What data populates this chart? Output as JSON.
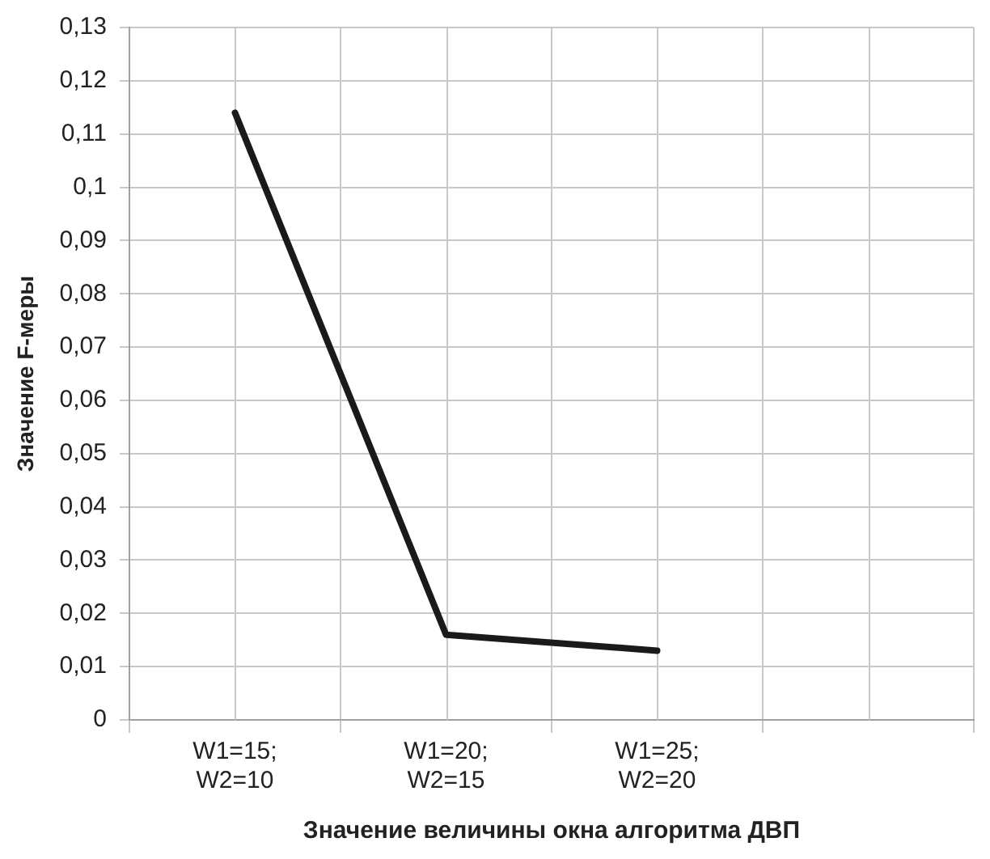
{
  "chart_data": {
    "type": "line",
    "xlabel": "Значение величины окна алгоритма ДВП",
    "ylabel": "Значение F-меры",
    "categories": [
      "W1=15; W2=10",
      "W1=20; W2=15",
      "W1=25; W2=20",
      null
    ],
    "series": [
      {
        "color": "#1a1a1a",
        "values": [
          0.114,
          0.016,
          0.013,
          null
        ]
      }
    ],
    "ylim": [
      0,
      0.13
    ],
    "yticks": [
      {
        "value": 0,
        "label": "0"
      },
      {
        "value": 0.01,
        "label": "0,01"
      },
      {
        "value": 0.02,
        "label": "0,02"
      },
      {
        "value": 0.03,
        "label": "0,03"
      },
      {
        "value": 0.04,
        "label": "0,04"
      },
      {
        "value": 0.05,
        "label": "0,05"
      },
      {
        "value": 0.06,
        "label": "0,06"
      },
      {
        "value": 0.07,
        "label": "0,07"
      },
      {
        "value": 0.08,
        "label": "0,08"
      },
      {
        "value": 0.09,
        "label": "0,09"
      },
      {
        "value": 0.1,
        "label": "0,1"
      },
      {
        "value": 0.11,
        "label": "0,11"
      },
      {
        "value": 0.12,
        "label": "0,12"
      },
      {
        "value": 0.13,
        "label": "0,13"
      }
    ],
    "grid": true,
    "legend": false,
    "marker": "none",
    "line_style": "solid"
  }
}
